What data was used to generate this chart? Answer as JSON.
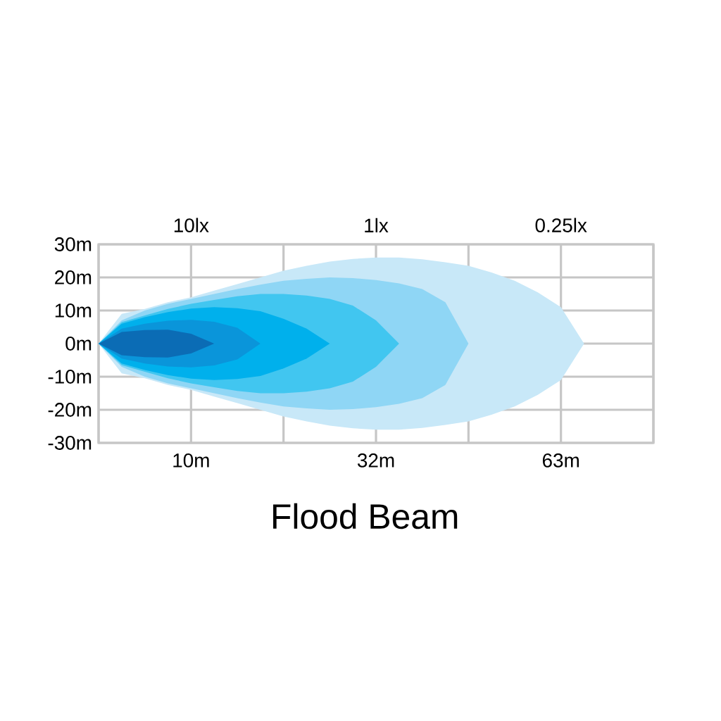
{
  "chart_data": {
    "type": "area",
    "xlabel": "Flood Beam",
    "grid": true,
    "categories": [
      null,
      null,
      null,
      null,
      "10m",
      null,
      null,
      null,
      null,
      null,
      null,
      null,
      "32m",
      null,
      null,
      null,
      null,
      null,
      null,
      null,
      "63m",
      null,
      null,
      null,
      null
    ],
    "ylim": [
      -30,
      30
    ],
    "yticks": [
      {
        "value": -30,
        "label": "-30m"
      },
      {
        "value": -20,
        "label": "-20m"
      },
      {
        "value": -10,
        "label": "-10m"
      },
      {
        "value": 0,
        "label": "0m"
      },
      {
        "value": 10,
        "label": "10m"
      },
      {
        "value": 20,
        "label": "20m"
      },
      {
        "value": 30,
        "label": "30m"
      }
    ],
    "annotations": [
      "10lx",
      "1lx",
      "0.25lx"
    ],
    "series": [
      {
        "color": "#0b6cb5",
        "values": [
          0,
          3.5,
          4.1,
          4.2,
          3,
          0,
          null,
          null,
          null,
          null,
          null,
          null,
          null,
          null,
          null,
          null,
          null,
          null,
          null,
          null,
          null,
          null,
          null,
          null,
          null
        ]
      },
      {
        "color": "#0b6cb5",
        "values": [
          0,
          -3.5,
          -4.1,
          -4.2,
          -3,
          0,
          null,
          null,
          null,
          null,
          null,
          null,
          null,
          null,
          null,
          null,
          null,
          null,
          null,
          null,
          null,
          null,
          null,
          null,
          null
        ]
      },
      {
        "color": "#0a95da",
        "values": [
          0,
          4.5,
          6,
          6.9,
          7.2,
          6.6,
          4.8,
          0,
          null,
          null,
          null,
          null,
          null,
          null,
          null,
          null,
          null,
          null,
          null,
          null,
          null,
          null,
          null,
          null,
          null
        ]
      },
      {
        "color": "#0a95da",
        "values": [
          0,
          -4.5,
          -6,
          -6.9,
          -7.2,
          -6.6,
          -4.8,
          0,
          null,
          null,
          null,
          null,
          null,
          null,
          null,
          null,
          null,
          null,
          null,
          null,
          null,
          null,
          null,
          null,
          null
        ]
      },
      {
        "color": "#00b0ec",
        "values": [
          0,
          6,
          8,
          9.5,
          10.6,
          11,
          10.7,
          9.8,
          7.5,
          4.5,
          0,
          null,
          null,
          null,
          null,
          null,
          null,
          null,
          null,
          null,
          null,
          null,
          null,
          null,
          null
        ]
      },
      {
        "color": "#00b0ec",
        "values": [
          0,
          -6,
          -8,
          -9.5,
          -10.6,
          -11,
          -10.7,
          -9.8,
          -7.5,
          -4.5,
          0,
          null,
          null,
          null,
          null,
          null,
          null,
          null,
          null,
          null,
          null,
          null,
          null,
          null,
          null
        ]
      },
      {
        "color": "#41c6f0",
        "values": [
          0,
          6.5,
          8.5,
          10.5,
          12,
          13.2,
          14.3,
          15,
          15,
          14.5,
          13.5,
          11.5,
          7,
          0,
          null,
          null,
          null,
          null,
          null,
          null,
          null,
          null,
          null,
          null,
          null
        ]
      },
      {
        "color": "#41c6f0",
        "values": [
          0,
          -6.5,
          -8.5,
          -10.5,
          -12,
          -13.2,
          -14.3,
          -15,
          -15,
          -14.5,
          -13.5,
          -11.5,
          -7,
          0,
          null,
          null,
          null,
          null,
          null,
          null,
          null,
          null,
          null,
          null,
          null
        ]
      },
      {
        "color": "#8fd6f5",
        "values": [
          0,
          7,
          10,
          12,
          13.5,
          15,
          16.5,
          17.8,
          19,
          19.6,
          20,
          19.8,
          19.2,
          18.2,
          16.5,
          12.5,
          0,
          null,
          null,
          null,
          null,
          null,
          null,
          null,
          null
        ]
      },
      {
        "color": "#8fd6f5",
        "values": [
          0,
          -7,
          -10,
          -12,
          -13.5,
          -15,
          -16.5,
          -17.8,
          -19,
          -19.6,
          -20,
          -19.8,
          -19.2,
          -18.2,
          -16.5,
          -12.5,
          0,
          null,
          null,
          null,
          null,
          null,
          null,
          null,
          null
        ]
      },
      {
        "color": "#c8e8f8",
        "values": [
          0,
          9,
          10.5,
          12.5,
          14,
          16,
          18,
          20,
          22,
          23.5,
          24.8,
          25.6,
          26,
          26,
          25.5,
          24.6,
          23.5,
          21.5,
          19,
          15.5,
          11,
          0,
          null,
          null,
          null
        ]
      },
      {
        "color": "#c8e8f8",
        "values": [
          0,
          -9,
          -10.5,
          -12.5,
          -14,
          -16,
          -18,
          -20,
          -22,
          -23.5,
          -24.8,
          -25.6,
          -26,
          -26,
          -25.5,
          -24.6,
          -23.5,
          -21.5,
          -19,
          -15.5,
          -11,
          0,
          null,
          null,
          null
        ]
      }
    ]
  }
}
